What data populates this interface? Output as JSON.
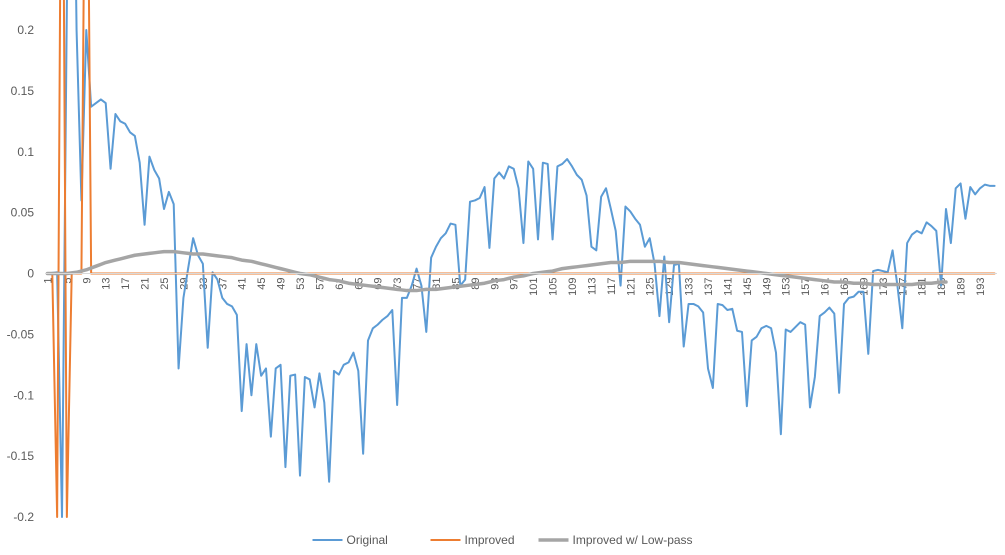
{
  "chart_data": {
    "type": "line",
    "title": "",
    "xlabel": "",
    "ylabel": "",
    "ylim": [
      -0.2,
      0.2
    ],
    "yticks": [
      "0.2",
      "0.15",
      "0.1",
      "0.05",
      "0",
      "-0.05",
      "-0.1",
      "-0.15",
      "-0.2"
    ],
    "ytick_values": [
      0.2,
      0.15,
      0.1,
      0.05,
      0,
      -0.05,
      -0.1,
      -0.15,
      -0.2
    ],
    "x_count": 196,
    "xticks": [
      "1",
      "5",
      "9",
      "13",
      "17",
      "21",
      "25",
      "29",
      "33",
      "37",
      "41",
      "45",
      "49",
      "53",
      "57",
      "61",
      "65",
      "69",
      "73",
      "77",
      "81",
      "85",
      "89",
      "93",
      "97",
      "101",
      "105",
      "109",
      "113",
      "117",
      "121",
      "125",
      "129",
      "133",
      "137",
      "141",
      "145",
      "149",
      "153",
      "157",
      "161",
      "165",
      "169",
      "173",
      "177",
      "181",
      "185",
      "189",
      "193"
    ],
    "xtick_values": [
      1,
      5,
      9,
      13,
      17,
      21,
      25,
      29,
      33,
      37,
      41,
      45,
      49,
      53,
      57,
      61,
      65,
      69,
      73,
      77,
      81,
      85,
      89,
      93,
      97,
      101,
      105,
      109,
      113,
      117,
      121,
      125,
      129,
      133,
      137,
      141,
      145,
      149,
      153,
      157,
      161,
      165,
      169,
      173,
      177,
      181,
      185,
      189,
      193
    ],
    "legend_position": "bottom",
    "grid": false,
    "series": [
      {
        "name": "Original",
        "color": "#5B9BD5",
        "anchors": [
          [
            1,
            0
          ],
          [
            3,
            0.001
          ],
          [
            4,
            -0.2
          ],
          [
            5,
            0.22
          ],
          [
            6,
            0.5
          ],
          [
            7,
            0.2
          ],
          [
            8,
            0.06
          ],
          [
            9,
            0.2
          ],
          [
            10,
            0.137
          ],
          [
            12,
            0.143
          ],
          [
            13,
            0.14
          ],
          [
            14,
            0.086
          ],
          [
            15,
            0.131
          ],
          [
            16,
            0.125
          ],
          [
            17,
            0.123
          ],
          [
            18,
            0.116
          ],
          [
            19,
            0.113
          ],
          [
            20,
            0.091
          ],
          [
            21,
            0.04
          ],
          [
            22,
            0.096
          ],
          [
            23,
            0.085
          ],
          [
            24,
            0.078
          ],
          [
            25,
            0.053
          ],
          [
            26,
            0.067
          ],
          [
            27,
            0.057
          ],
          [
            28,
            -0.078
          ],
          [
            29,
            -0.02
          ],
          [
            30,
            0.005
          ],
          [
            31,
            0.029
          ],
          [
            32,
            0.015
          ],
          [
            33,
            0.008
          ],
          [
            34,
            -0.061
          ],
          [
            35,
            0.001
          ],
          [
            36,
            -0.005
          ],
          [
            37,
            -0.02
          ],
          [
            38,
            -0.025
          ],
          [
            39,
            -0.027
          ],
          [
            40,
            -0.034
          ],
          [
            41,
            -0.113
          ],
          [
            42,
            -0.058
          ],
          [
            43,
            -0.1
          ],
          [
            44,
            -0.058
          ],
          [
            45,
            -0.084
          ],
          [
            46,
            -0.078
          ],
          [
            47,
            -0.134
          ],
          [
            48,
            -0.078
          ],
          [
            49,
            -0.075
          ],
          [
            50,
            -0.159
          ],
          [
            51,
            -0.084
          ],
          [
            52,
            -0.083
          ],
          [
            53,
            -0.166
          ],
          [
            54,
            -0.085
          ],
          [
            55,
            -0.087
          ],
          [
            56,
            -0.11
          ],
          [
            57,
            -0.082
          ],
          [
            58,
            -0.106
          ],
          [
            59,
            -0.171
          ],
          [
            60,
            -0.08
          ],
          [
            61,
            -0.083
          ],
          [
            62,
            -0.075
          ],
          [
            63,
            -0.073
          ],
          [
            64,
            -0.065
          ],
          [
            65,
            -0.08
          ],
          [
            66,
            -0.148
          ],
          [
            67,
            -0.055
          ],
          [
            68,
            -0.045
          ],
          [
            69,
            -0.042
          ],
          [
            70,
            -0.038
          ],
          [
            71,
            -0.035
          ],
          [
            72,
            -0.03
          ],
          [
            73,
            -0.108
          ],
          [
            74,
            -0.02
          ],
          [
            75,
            -0.02
          ],
          [
            76,
            -0.01
          ],
          [
            77,
            0.004
          ],
          [
            78,
            -0.01
          ],
          [
            79,
            -0.048
          ],
          [
            80,
            0.013
          ],
          [
            81,
            0.022
          ],
          [
            82,
            0.029
          ],
          [
            83,
            0.033
          ],
          [
            84,
            0.041
          ],
          [
            85,
            0.04
          ],
          [
            86,
            -0.01
          ],
          [
            87,
            -0.005
          ],
          [
            88,
            0.059
          ],
          [
            89,
            0.06
          ],
          [
            90,
            0.062
          ],
          [
            91,
            0.071
          ],
          [
            92,
            0.021
          ],
          [
            93,
            0.078
          ],
          [
            94,
            0.083
          ],
          [
            95,
            0.078
          ],
          [
            96,
            0.088
          ],
          [
            97,
            0.086
          ],
          [
            98,
            0.07
          ],
          [
            99,
            0.025
          ],
          [
            100,
            0.092
          ],
          [
            101,
            0.086
          ],
          [
            102,
            0.028
          ],
          [
            103,
            0.091
          ],
          [
            104,
            0.09
          ],
          [
            105,
            0.028
          ],
          [
            106,
            0.088
          ],
          [
            107,
            0.09
          ],
          [
            108,
            0.094
          ],
          [
            109,
            0.088
          ],
          [
            110,
            0.081
          ],
          [
            111,
            0.077
          ],
          [
            112,
            0.064
          ],
          [
            113,
            0.022
          ],
          [
            114,
            0.019
          ],
          [
            115,
            0.063
          ],
          [
            116,
            0.07
          ],
          [
            117,
            0.053
          ],
          [
            118,
            0.035
          ],
          [
            119,
            -0.01
          ],
          [
            120,
            0.055
          ],
          [
            121,
            0.051
          ],
          [
            122,
            0.045
          ],
          [
            123,
            0.04
          ],
          [
            124,
            0.022
          ],
          [
            125,
            0.029
          ],
          [
            126,
            0.008
          ],
          [
            127,
            -0.035
          ],
          [
            128,
            0.014
          ],
          [
            129,
            -0.04
          ],
          [
            130,
            0.007
          ],
          [
            131,
            0.008
          ],
          [
            132,
            -0.06
          ],
          [
            133,
            -0.025
          ],
          [
            134,
            -0.025
          ],
          [
            135,
            -0.027
          ],
          [
            136,
            -0.032
          ],
          [
            137,
            -0.078
          ],
          [
            138,
            -0.094
          ],
          [
            139,
            -0.025
          ],
          [
            140,
            -0.026
          ],
          [
            141,
            -0.03
          ],
          [
            142,
            -0.029
          ],
          [
            143,
            -0.047
          ],
          [
            144,
            -0.048
          ],
          [
            145,
            -0.109
          ],
          [
            146,
            -0.055
          ],
          [
            147,
            -0.052
          ],
          [
            148,
            -0.045
          ],
          [
            149,
            -0.043
          ],
          [
            150,
            -0.045
          ],
          [
            151,
            -0.065
          ],
          [
            152,
            -0.132
          ],
          [
            153,
            -0.046
          ],
          [
            154,
            -0.048
          ],
          [
            155,
            -0.044
          ],
          [
            156,
            -0.04
          ],
          [
            157,
            -0.042
          ],
          [
            158,
            -0.11
          ],
          [
            159,
            -0.085
          ],
          [
            160,
            -0.035
          ],
          [
            161,
            -0.032
          ],
          [
            162,
            -0.028
          ],
          [
            163,
            -0.033
          ],
          [
            164,
            -0.098
          ],
          [
            165,
            -0.025
          ],
          [
            166,
            -0.02
          ],
          [
            167,
            -0.019
          ],
          [
            168,
            -0.015
          ],
          [
            169,
            -0.015
          ],
          [
            170,
            -0.066
          ],
          [
            171,
            0.002
          ],
          [
            172,
            0.003
          ],
          [
            173,
            0.002
          ],
          [
            174,
            0.001
          ],
          [
            175,
            0.019
          ],
          [
            176,
            -0.01
          ],
          [
            177,
            -0.045
          ],
          [
            178,
            0.025
          ],
          [
            179,
            0.032
          ],
          [
            180,
            0.035
          ],
          [
            181,
            0.033
          ],
          [
            182,
            0.042
          ],
          [
            183,
            0.039
          ],
          [
            184,
            0.035
          ],
          [
            185,
            -0.01
          ],
          [
            186,
            0.053
          ],
          [
            187,
            0.025
          ],
          [
            188,
            0.07
          ],
          [
            189,
            0.074
          ],
          [
            190,
            0.045
          ],
          [
            191,
            0.071
          ],
          [
            192,
            0.065
          ],
          [
            193,
            0.07
          ],
          [
            194,
            0.073
          ],
          [
            195,
            0.072
          ],
          [
            196,
            0.072
          ]
        ]
      },
      {
        "name": "Improved",
        "color": "#ED7D31",
        "anchors": [
          [
            1,
            0
          ],
          [
            2,
            0
          ],
          [
            3,
            -0.2
          ],
          [
            4,
            0.5
          ],
          [
            5,
            -0.2
          ],
          [
            6,
            0
          ],
          [
            8,
            0
          ],
          [
            9,
            0.5
          ],
          [
            10,
            0
          ],
          [
            196,
            0
          ]
        ]
      },
      {
        "name": "Improved w/ Low-pass",
        "color": "#A5A5A5",
        "anchors": [
          [
            1,
            0
          ],
          [
            5,
            0
          ],
          [
            7,
            0.001
          ],
          [
            9,
            0.003
          ],
          [
            11,
            0.006
          ],
          [
            13,
            0.009
          ],
          [
            15,
            0.011
          ],
          [
            17,
            0.013
          ],
          [
            19,
            0.015
          ],
          [
            21,
            0.016
          ],
          [
            23,
            0.017
          ],
          [
            25,
            0.018
          ],
          [
            27,
            0.018
          ],
          [
            29,
            0.017
          ],
          [
            31,
            0.016
          ],
          [
            33,
            0.016
          ],
          [
            35,
            0.015
          ],
          [
            37,
            0.014
          ],
          [
            39,
            0.013
          ],
          [
            41,
            0.011
          ],
          [
            43,
            0.01
          ],
          [
            45,
            0.008
          ],
          [
            47,
            0.006
          ],
          [
            49,
            0.004
          ],
          [
            51,
            0.002
          ],
          [
            53,
            0
          ],
          [
            55,
            -0.001
          ],
          [
            57,
            -0.003
          ],
          [
            59,
            -0.005
          ],
          [
            61,
            -0.006
          ],
          [
            63,
            -0.008
          ],
          [
            65,
            -0.009
          ],
          [
            67,
            -0.01
          ],
          [
            69,
            -0.011
          ],
          [
            71,
            -0.012
          ],
          [
            73,
            -0.013
          ],
          [
            75,
            -0.014
          ],
          [
            77,
            -0.014
          ],
          [
            79,
            -0.013
          ],
          [
            81,
            -0.013
          ],
          [
            83,
            -0.012
          ],
          [
            85,
            -0.011
          ],
          [
            87,
            -0.01
          ],
          [
            89,
            -0.009
          ],
          [
            91,
            -0.008
          ],
          [
            93,
            -0.006
          ],
          [
            95,
            -0.005
          ],
          [
            97,
            -0.003
          ],
          [
            99,
            -0.002
          ],
          [
            101,
            0
          ],
          [
            103,
            0.001
          ],
          [
            105,
            0.002
          ],
          [
            107,
            0.004
          ],
          [
            109,
            0.005
          ],
          [
            111,
            0.006
          ],
          [
            113,
            0.007
          ],
          [
            115,
            0.008
          ],
          [
            117,
            0.009
          ],
          [
            119,
            0.009
          ],
          [
            121,
            0.01
          ],
          [
            123,
            0.01
          ],
          [
            125,
            0.01
          ],
          [
            127,
            0.01
          ],
          [
            129,
            0.009
          ],
          [
            131,
            0.009
          ],
          [
            133,
            0.008
          ],
          [
            135,
            0.007
          ],
          [
            137,
            0.006
          ],
          [
            139,
            0.005
          ],
          [
            141,
            0.004
          ],
          [
            143,
            0.003
          ],
          [
            145,
            0.002
          ],
          [
            147,
            0.001
          ],
          [
            149,
            0
          ],
          [
            151,
            -0.001
          ],
          [
            153,
            -0.002
          ],
          [
            155,
            -0.003
          ],
          [
            157,
            -0.004
          ],
          [
            159,
            -0.005
          ],
          [
            161,
            -0.006
          ],
          [
            163,
            -0.007
          ],
          [
            165,
            -0.007
          ],
          [
            167,
            -0.008
          ],
          [
            169,
            -0.008
          ],
          [
            171,
            -0.009
          ],
          [
            173,
            -0.009
          ],
          [
            175,
            -0.009
          ],
          [
            177,
            -0.009
          ],
          [
            179,
            -0.009
          ],
          [
            181,
            -0.008
          ],
          [
            183,
            -0.008
          ],
          [
            185,
            -0.007
          ],
          [
            186,
            -0.007
          ]
        ]
      }
    ]
  }
}
